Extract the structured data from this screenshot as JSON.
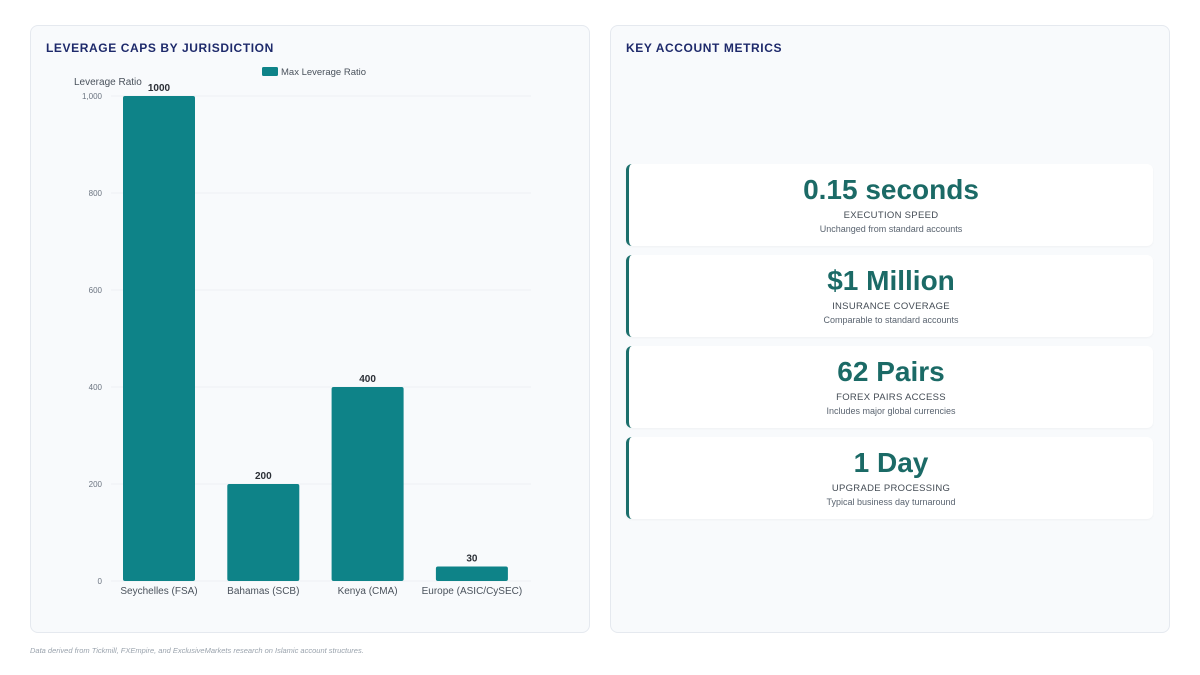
{
  "left_panel": {
    "title": "LEVERAGE CAPS BY JURISDICTION"
  },
  "right_panel": {
    "title": "KEY ACCOUNT METRICS"
  },
  "chart_data": {
    "type": "bar",
    "title": "",
    "ylabel": "Leverage Ratio",
    "xlabel": "",
    "categories": [
      "Seychelles (FSA)",
      "Bahamas (SCB)",
      "Kenya (CMA)",
      "Europe (ASIC/CySEC)"
    ],
    "series": [
      {
        "name": "Max Leverage Ratio",
        "values": [
          1000,
          200,
          400,
          30
        ],
        "color": "#0e8388"
      }
    ],
    "data_labels": [
      "1000",
      "200",
      "400",
      "30"
    ],
    "yticks": [
      0,
      200,
      400,
      600,
      800,
      1000
    ],
    "ytick_labels": [
      "0",
      "200",
      "400",
      "600",
      "800",
      "1,000"
    ],
    "ylim": [
      0,
      1000
    ],
    "grid": true,
    "legend_position": "top-center"
  },
  "metrics": [
    {
      "value": "0.15 seconds",
      "label": "EXECUTION SPEED",
      "sub": "Unchanged from standard accounts"
    },
    {
      "value": "$1 Million",
      "label": "INSURANCE COVERAGE",
      "sub": "Comparable to standard accounts"
    },
    {
      "value": "62 Pairs",
      "label": "FOREX PAIRS ACCESS",
      "sub": "Includes major global currencies"
    },
    {
      "value": "1 Day",
      "label": "UPGRADE PROCESSING",
      "sub": "Typical business day turnaround"
    }
  ],
  "footnote": "Data derived from Tickmill, FXEmpire, and ExclusiveMarkets research on Islamic account structures."
}
